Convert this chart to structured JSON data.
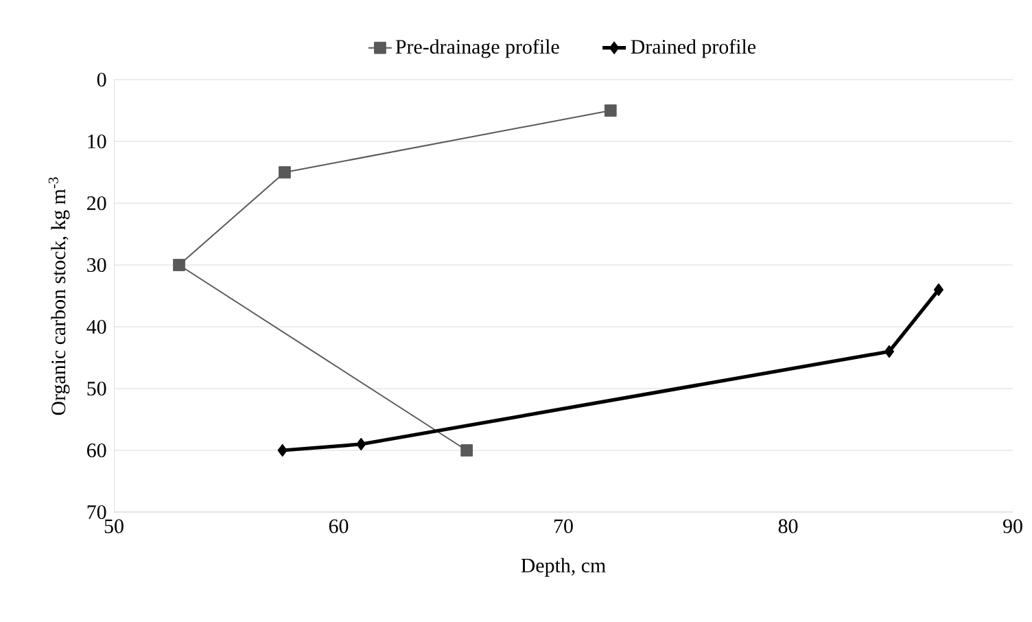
{
  "chart_data": {
    "type": "line",
    "xlabel": "Depth, cm",
    "ylabel": "Organic carbon stock, kg m$^{-3}$",
    "xlim": [
      50,
      90
    ],
    "xticks": [
      50,
      60,
      70,
      80,
      90
    ],
    "ylim": [
      70,
      0
    ],
    "yticks": [
      0,
      10,
      20,
      30,
      40,
      50,
      60,
      70
    ],
    "grid": "y",
    "legend": "top",
    "series": [
      {
        "name": "Pre-drainage profile",
        "color": "#595959",
        "marker": "square",
        "x": [
          72.1,
          57.6,
          52.9,
          65.7
        ],
        "values": [
          5,
          15,
          30,
          60
        ]
      },
      {
        "name": "Drained profile",
        "color": "#000000",
        "marker": "diamond",
        "x": [
          57.5,
          61.0,
          84.5,
          86.7
        ],
        "values": [
          60,
          59,
          44,
          34
        ]
      }
    ]
  }
}
